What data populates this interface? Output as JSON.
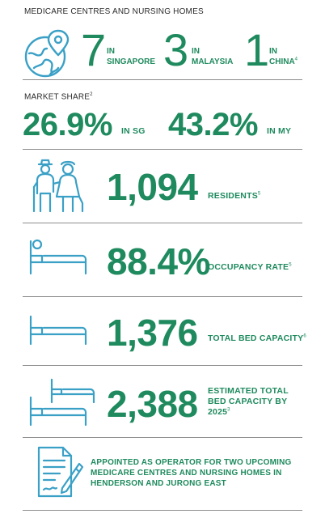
{
  "section1": {
    "heading": "MEDICARE CENTRES AND NURSING HOMES",
    "singapore": {
      "num": "7",
      "in": "IN",
      "place": "SINGAPORE"
    },
    "malaysia": {
      "num": "3",
      "in": "IN",
      "place": "MALAYSIA"
    },
    "china": {
      "num": "1",
      "in": "IN",
      "place": "CHINA",
      "note": "4"
    },
    "icon": "globe-location-icon"
  },
  "section2": {
    "heading": "MARKET SHARE",
    "heading_note": "2",
    "sg": {
      "value": "26.9%",
      "label": "IN SG"
    },
    "my": {
      "value": "43.2%",
      "label": "IN MY"
    }
  },
  "stats": [
    {
      "value": "1,094",
      "label": "RESIDENTS",
      "note": "5",
      "icon": "elderly-couple-icon"
    },
    {
      "value": "88.4%",
      "label": "OCCUPANCY RATE",
      "note": "5",
      "icon": "patient-bed-icon"
    },
    {
      "value": "1,376",
      "label": "TOTAL BED CAPACITY",
      "note": "6",
      "icon": "bed-icon"
    },
    {
      "value": "2,388",
      "label_line1": "ESTIMATED TOTAL",
      "label_line2": "BED CAPACITY BY",
      "label_line3": "2025",
      "note": "3",
      "icon": "double-bed-icon"
    }
  ],
  "appointment": {
    "line1": "APPOINTED AS OPERATOR FOR TWO UPCOMING",
    "line2": "MEDICARE CENTRES AND NURSING HOMES IN",
    "line3": "HENDERSON AND JURONG EAST",
    "icon": "contract-pen-icon"
  },
  "colors": {
    "accent": "#1e8a5e",
    "icon": "#3aa0c6",
    "divider": "#8d8d8d"
  }
}
